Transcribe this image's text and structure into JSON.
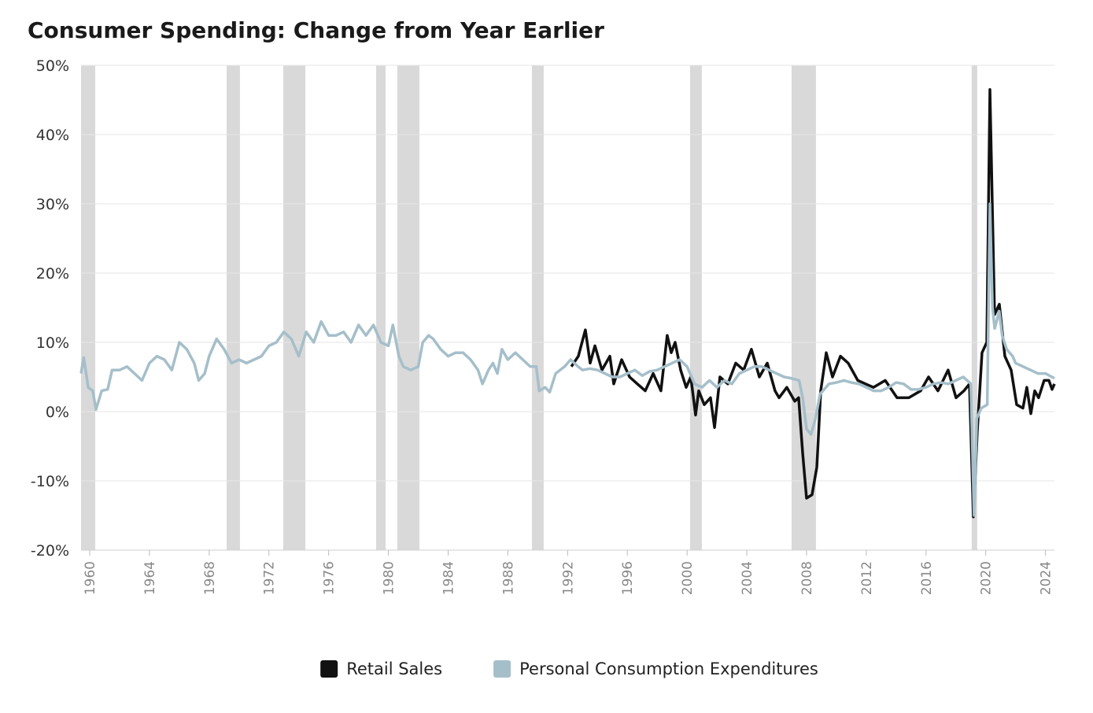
{
  "chart_data": {
    "type": "line",
    "title": "Consumer Spending: Change from Year Earlier",
    "xlim": [
      1959.42,
      2024.6
    ],
    "xticks": [
      1960,
      1964,
      1968,
      1972,
      1976,
      1980,
      1984,
      1988,
      1992,
      1996,
      2000,
      2004,
      2008,
      2012,
      2016,
      2020,
      2024
    ],
    "ylim": [
      -20,
      50
    ],
    "yticks": [
      {
        "value": -20,
        "label": "-20%"
      },
      {
        "value": -10,
        "label": "-10%"
      },
      {
        "value": 0,
        "label": "0%"
      },
      {
        "value": 10,
        "label": "10%"
      },
      {
        "value": 20,
        "label": "20%"
      },
      {
        "value": 30,
        "label": "30%"
      },
      {
        "value": 40,
        "label": "40%"
      },
      {
        "value": 50,
        "label": "50%"
      }
    ],
    "grid": true,
    "legend": "bottom",
    "recessions": [
      [
        1959.42,
        1960.37
      ],
      [
        1969.17,
        1970.06
      ],
      [
        1972.96,
        1974.44
      ],
      [
        1979.18,
        1979.81
      ],
      [
        1980.6,
        1982.08
      ],
      [
        1989.61,
        1990.4
      ],
      [
        2000.2,
        2000.99
      ],
      [
        2007.0,
        2008.63
      ],
      [
        2019.06,
        2019.43
      ]
    ],
    "recession_color": "#d9d9d9",
    "series": [
      {
        "name": "Retail Sales",
        "color": "#111111",
        "x": [
          1992.25,
          1992.72,
          1993.19,
          1993.51,
          1993.83,
          1994.3,
          1994.83,
          1995.09,
          1995.62,
          1996.15,
          1996.67,
          1997.2,
          1997.73,
          1998.25,
          1998.67,
          1998.94,
          1999.2,
          1999.57,
          1999.94,
          2000.25,
          2000.57,
          2000.78,
          2001.15,
          2001.57,
          2001.84,
          2002.2,
          2002.73,
          2003.26,
          2003.79,
          2004.31,
          2004.84,
          2005.37,
          2005.89,
          2006.16,
          2006.68,
          2007.21,
          2007.47,
          2007.74,
          2008.0,
          2008.37,
          2008.69,
          2008.95,
          2009.32,
          2009.74,
          2010.27,
          2010.79,
          2011.43,
          2011.95,
          2012.48,
          2013.27,
          2014.06,
          2014.85,
          2015.64,
          2016.17,
          2016.8,
          2017.48,
          2018.01,
          2018.54,
          2018.91,
          2019.17,
          2019.43,
          2019.75,
          2020.07,
          2020.28,
          2020.59,
          2020.91,
          2021.28,
          2021.7,
          2022.07,
          2022.49,
          2022.75,
          2023.02,
          2023.28,
          2023.54,
          2023.91,
          2024.23,
          2024.44,
          2024.6
        ],
        "values": [
          6.5,
          8,
          11.8,
          7,
          9.5,
          6,
          8,
          4,
          7.5,
          5,
          4,
          3,
          5.5,
          3,
          11,
          8.5,
          10,
          6,
          3.5,
          5,
          -0.5,
          3,
          1,
          2,
          -2.3,
          5,
          4,
          7,
          6,
          9,
          5,
          7,
          3,
          2,
          3.5,
          1.5,
          2,
          -6,
          -12.5,
          -12,
          -8,
          3,
          8.5,
          5,
          8,
          7,
          4.5,
          4,
          3.5,
          4.5,
          2,
          2,
          3,
          5,
          3,
          6,
          2,
          3,
          4,
          -15.2,
          -3,
          8.5,
          10,
          46.5,
          14,
          15.5,
          8,
          6,
          1,
          0.5,
          3.5,
          -0.3,
          3,
          2,
          4.5,
          4.5,
          3.2,
          4
        ]
      },
      {
        "name": "Personal Consumption Expenditures",
        "color": "#a5bfca",
        "x": [
          1959.42,
          1959.6,
          1959.9,
          1960.2,
          1960.42,
          1960.8,
          1961.2,
          1961.5,
          1962,
          1962.5,
          1963,
          1963.5,
          1964,
          1964.5,
          1965,
          1965.5,
          1966,
          1966.5,
          1967,
          1967.3,
          1967.7,
          1968,
          1968.5,
          1969,
          1969.5,
          1970,
          1970.5,
          1971,
          1971.5,
          1972,
          1972.5,
          1973,
          1973.5,
          1974,
          1974.5,
          1975,
          1975.5,
          1976,
          1976.5,
          1977,
          1977.5,
          1978,
          1978.5,
          1979,
          1979.5,
          1980,
          1980.3,
          1980.7,
          1981,
          1981.5,
          1982,
          1982.3,
          1982.7,
          1983,
          1983.5,
          1984,
          1984.5,
          1985,
          1985.5,
          1986,
          1986.3,
          1986.7,
          1987,
          1987.3,
          1987.6,
          1988,
          1988.5,
          1989,
          1989.5,
          1989.9,
          1990.1,
          1990.5,
          1990.8,
          1991.2,
          1991.8,
          1992.2,
          1992.7,
          1993,
          1993.5,
          1994,
          1994.5,
          1995,
          1995.5,
          1996,
          1996.5,
          1997,
          1997.5,
          1998,
          1998.5,
          1999,
          1999.5,
          2000,
          2000.5,
          2001,
          2001.5,
          2002,
          2002.5,
          2003,
          2003.5,
          2004,
          2004.5,
          2005,
          2005.5,
          2006,
          2006.5,
          2007,
          2007.5,
          2007.74,
          2008.0,
          2008.3,
          2008.6,
          2008.9,
          2009.5,
          2010,
          2010.5,
          2011,
          2011.5,
          2012,
          2012.5,
          2013,
          2013.5,
          2014,
          2014.5,
          2015,
          2015.5,
          2016,
          2016.5,
          2017,
          2017.5,
          2018,
          2018.5,
          2019.0,
          2019.22,
          2019.4,
          2019.7,
          2020.1,
          2020.28,
          2020.45,
          2020.6,
          2020.9,
          2021.1,
          2021.4,
          2021.8,
          2022,
          2022.5,
          2023,
          2023.5,
          2024,
          2024.6
        ],
        "values": [
          5.5,
          7.8,
          3.5,
          3,
          0.3,
          3,
          3.2,
          6,
          6,
          6.5,
          5.5,
          4.5,
          7,
          8,
          7.5,
          6,
          10,
          9,
          7,
          4.5,
          5.5,
          8,
          10.5,
          9,
          7,
          7.5,
          7,
          7.5,
          8,
          9.5,
          10,
          11.5,
          10.5,
          8,
          11.5,
          10,
          13,
          11,
          11,
          11.5,
          10,
          12.5,
          11,
          12.5,
          10,
          9.5,
          12.5,
          8,
          6.5,
          6,
          6.5,
          10,
          11,
          10.5,
          9,
          8,
          8.5,
          8.5,
          7.5,
          6,
          4,
          6,
          7,
          5.5,
          9,
          7.5,
          8.5,
          7.5,
          6.5,
          6.5,
          3,
          3.5,
          2.8,
          5.5,
          6.5,
          7.5,
          6.5,
          6,
          6.2,
          6,
          5.5,
          5,
          5,
          5.5,
          6,
          5.2,
          5.8,
          6,
          6.5,
          7,
          7.5,
          6.5,
          4,
          3.5,
          4.5,
          3.5,
          4.5,
          4,
          5.5,
          6,
          6.5,
          6.5,
          6,
          5.5,
          5,
          4.8,
          4.5,
          2,
          -2.5,
          -3.3,
          -1,
          2.5,
          4,
          4.2,
          4.5,
          4.2,
          4,
          3.5,
          3,
          3,
          3.5,
          4.2,
          4,
          3.2,
          3.2,
          3.5,
          4,
          4.2,
          4,
          4.5,
          5,
          4,
          -15,
          -1,
          0.5,
          1,
          30,
          15,
          12,
          14.5,
          11,
          9,
          8,
          7,
          6.5,
          6,
          5.5,
          5.5,
          4.8
        ]
      }
    ]
  }
}
